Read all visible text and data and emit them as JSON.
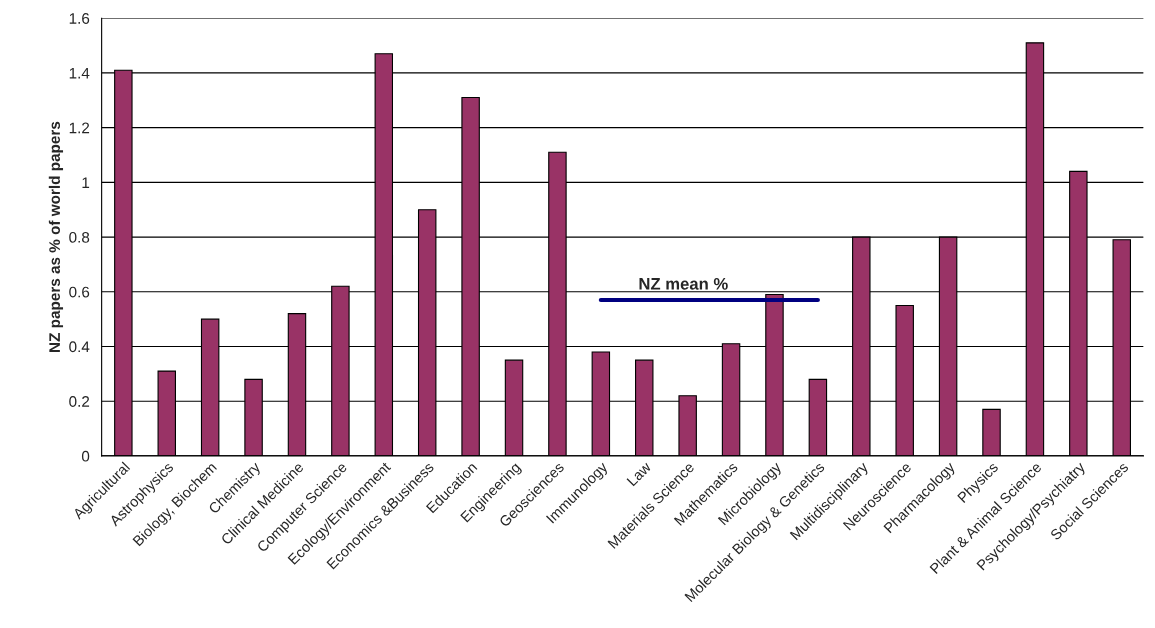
{
  "chart_data": {
    "type": "bar",
    "ylabel": "NZ papers as % of world papers",
    "categories": [
      "Agricultural",
      "Astrophysics",
      "Biology, Biochem",
      "Chemistry",
      "Clinical Medicine",
      "Computer Science",
      "Ecology/Environment",
      "Economics &Business",
      "Education",
      "Engineering",
      "Geosciences",
      "Immunology",
      "Law",
      "Materials Science",
      "Mathematics",
      "Microbiology",
      "Molecular Biology & Genetics",
      "Multidisciplinary",
      "Neuroscience",
      "Pharmacology",
      "Physics",
      "Plant & Animal Science",
      "Psychology/Psychiatry",
      "Social Sciences"
    ],
    "series": [
      {
        "color": "#993366",
        "values": [
          1.41,
          0.31,
          0.5,
          0.28,
          0.52,
          0.62,
          1.47,
          0.9,
          1.31,
          0.35,
          1.11,
          0.38,
          0.35,
          0.22,
          0.41,
          0.59,
          0.28,
          0.8,
          0.55,
          0.8,
          0.17,
          1.51,
          1.04,
          0.79
        ]
      },
      {
        "type": "line",
        "name": "NZ mean %",
        "color": "#000080",
        "values": [
          null,
          null,
          null,
          null,
          null,
          null,
          null,
          null,
          null,
          null,
          null,
          0.57,
          0.57,
          0.57,
          0.57,
          0.57,
          0.57,
          null,
          null,
          null,
          null,
          null,
          null,
          null
        ]
      }
    ],
    "ylim": [
      0,
      1.6
    ],
    "yticks": [
      0,
      0.2,
      0.4,
      0.6,
      0.8,
      1,
      1.2,
      1.4,
      1.6
    ],
    "grid": "y",
    "legend": false,
    "marker": "none",
    "line_style": "solid"
  }
}
